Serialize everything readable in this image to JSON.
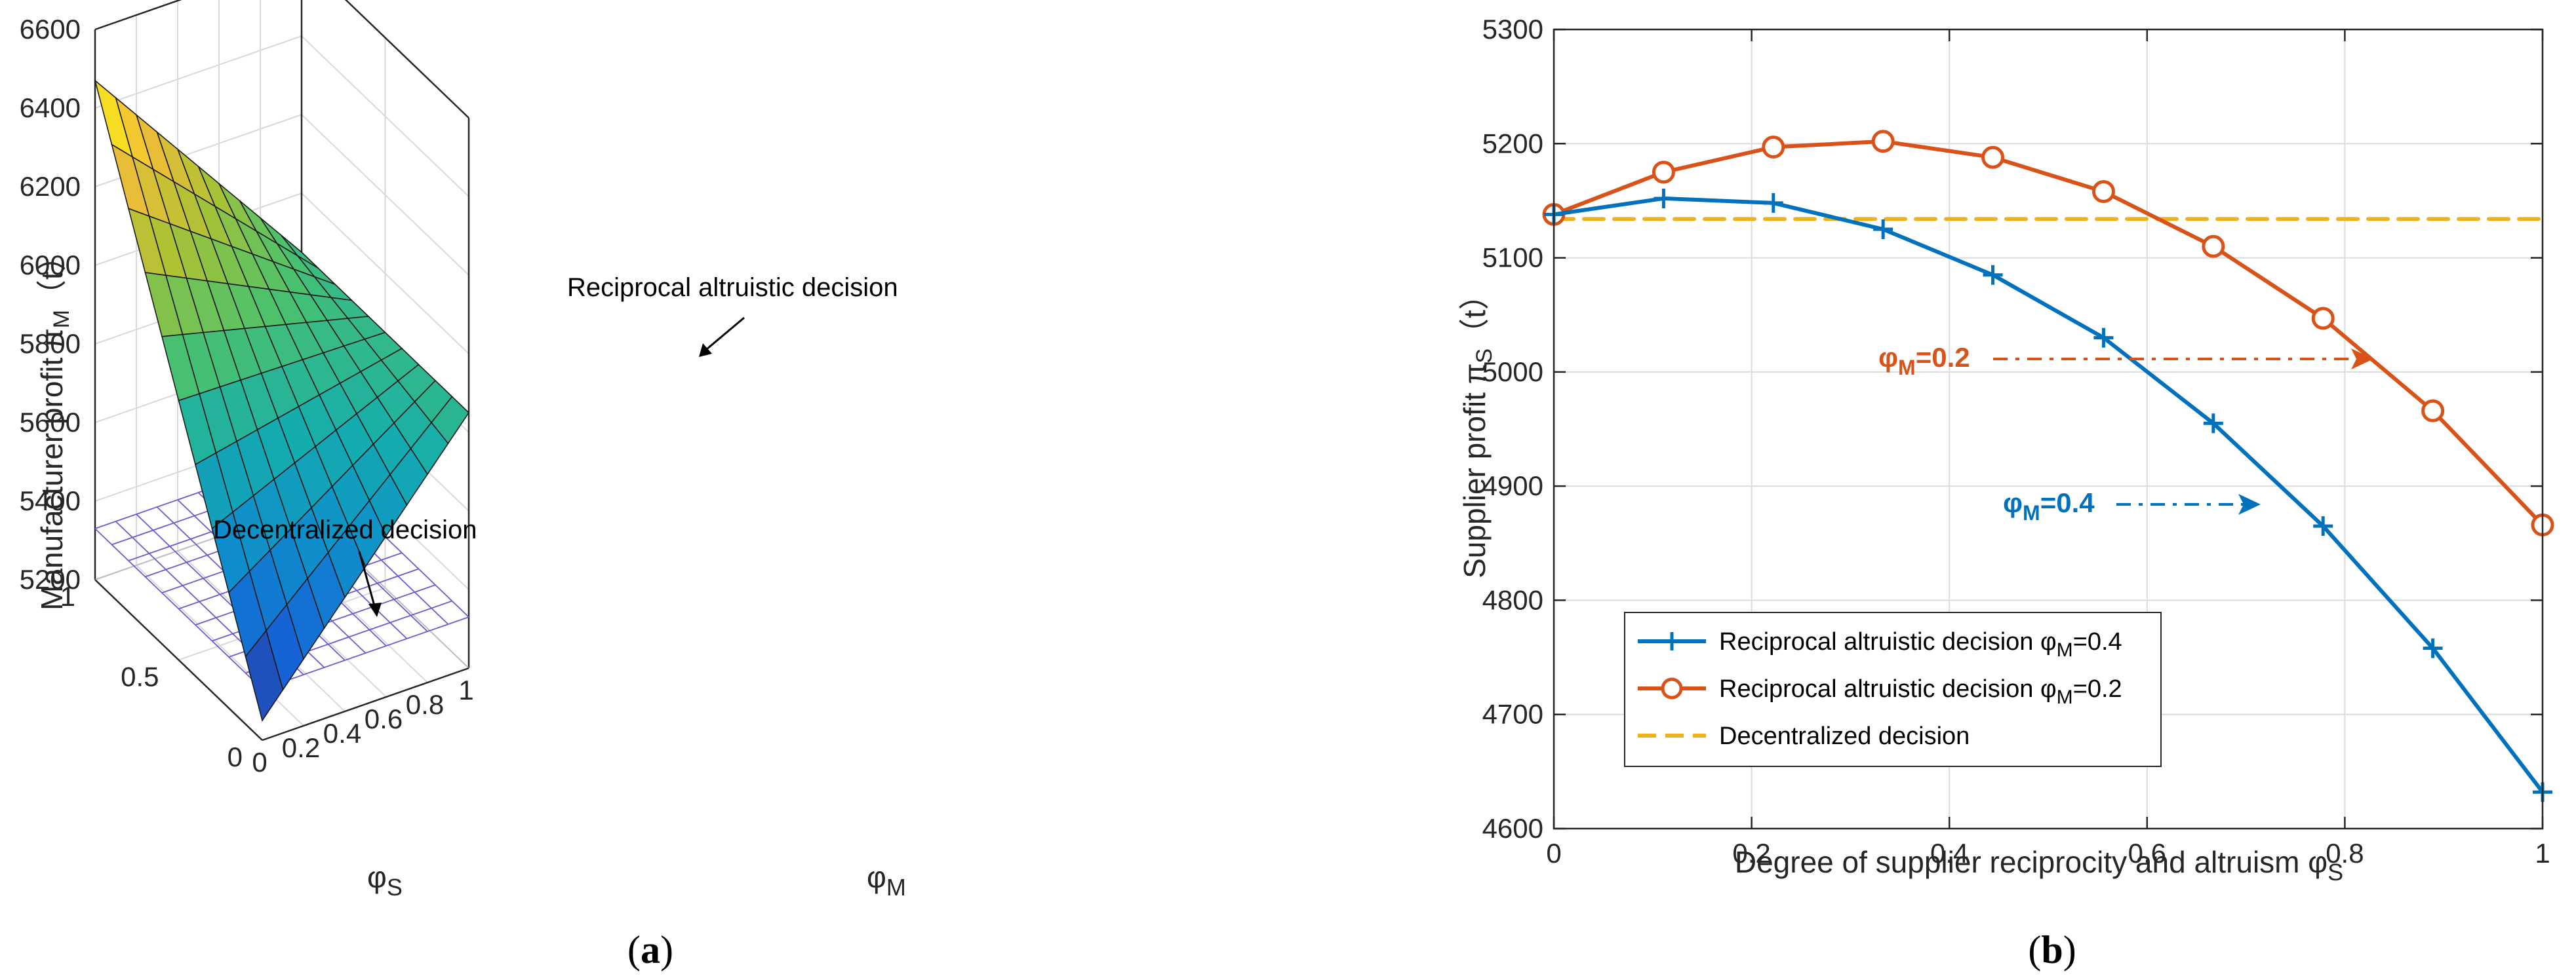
{
  "captions": {
    "a": "(a)",
    "b": "(b)"
  },
  "chart_data": [
    {
      "type": "surface",
      "panel": "a",
      "zlabel": "Manufacturer profit π",
      "zlabel_sub": "M",
      "zlabel_suffix": "（t）",
      "xlabel": "φ",
      "xlabel_sub": "M",
      "ylabel": "φ",
      "ylabel_sub": "S",
      "zlim": [
        5200,
        6600
      ],
      "z_ticks": [
        "5200",
        "5400",
        "5600",
        "5800",
        "6000",
        "6200",
        "6400",
        "6600"
      ],
      "x_ticks": [
        "0",
        "0.2",
        "0.4",
        "0.6",
        "0.8",
        "1"
      ],
      "y_ticks": [
        "0",
        "0.5",
        "1"
      ],
      "surfaces": [
        {
          "name": "Reciprocal altruistic decision",
          "corners": {
            "m0_s0": 5250,
            "m1_s0": 5850,
            "m0_s1": 6470,
            "m1_s1": 5850
          }
        },
        {
          "name": "Decentralized decision",
          "value": 5330
        }
      ],
      "annotations": [
        "Reciprocal altruistic decision",
        "Decentralized decision"
      ]
    },
    {
      "type": "line",
      "panel": "b",
      "xlabel": "Degree of supplier reciprocity and altruism φ",
      "xlabel_sub": "S",
      "ylabel": "Supplier profit π",
      "ylabel_sub": "S",
      "ylabel_suffix": "（t）",
      "xlim": [
        0,
        1
      ],
      "ylim": [
        4600,
        5300
      ],
      "x_ticks": [
        "0",
        "0.2",
        "0.4",
        "0.6",
        "0.8",
        "1"
      ],
      "y_ticks": [
        "4600",
        "4700",
        "4800",
        "4900",
        "5000",
        "5100",
        "5200",
        "5300"
      ],
      "x": [
        0,
        0.111,
        0.222,
        0.333,
        0.444,
        0.556,
        0.667,
        0.778,
        0.889,
        1.0
      ],
      "series": [
        {
          "name": "Reciprocal altruistic decision φ",
          "sub": "M",
          "suffix": "=0.4",
          "color": "#0072BD",
          "marker": "plus",
          "values": [
            5138,
            5152,
            5148,
            5125,
            5085,
            5030,
            4955,
            4865,
            4758,
            4632
          ]
        },
        {
          "name": "Reciprocal altruistic decision φ",
          "sub": "M",
          "suffix": "=0.2",
          "color": "#D95319",
          "marker": "circle",
          "values": [
            5138,
            5175,
            5197,
            5202,
            5188,
            5158,
            5110,
            5047,
            4966,
            4866
          ]
        },
        {
          "name": "Decentralized decision",
          "sub": "",
          "suffix": "",
          "color": "#EDB120",
          "marker": "none",
          "values": [
            5134,
            5134,
            5134,
            5134,
            5134,
            5134,
            5134,
            5134,
            5134,
            5134
          ]
        }
      ],
      "annotations": [
        {
          "text": "φ",
          "sub": "M",
          "suffix": "=0.2",
          "color": "#D95319"
        },
        {
          "text": "φ",
          "sub": "M",
          "suffix": "=0.4",
          "color": "#0072BD"
        }
      ]
    }
  ]
}
